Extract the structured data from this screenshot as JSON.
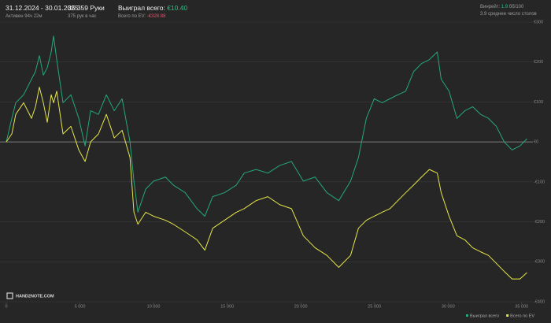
{
  "header": {
    "date_range": "31.12.2024 - 30.01.2025",
    "active": "Активен 94ч 22м",
    "hands": "35 359 Руки",
    "hands_per_hour": "375 рук в час",
    "won_label": "Выиграл всего:",
    "won_value": "€10.40",
    "ev_label": "Всего по EV:",
    "ev_value": "-€328.88",
    "winrate_label": "Винрейт:",
    "winrate_value": "1.9",
    "winrate_unit": "бб/100",
    "tables": "3.9 среднее число столов",
    "logo": "HAND2NOTE.COM"
  },
  "chart_data": {
    "type": "line",
    "x": [
      0,
      375,
      642,
      1177,
      1712,
      1980,
      2247,
      2515,
      2782,
      3050,
      3210,
      3424,
      3852,
      4387,
      4922,
      5350,
      5725,
      6260,
      6795,
      7330,
      7865,
      8400,
      8667,
      8935,
      9470,
      10005,
      10807,
      11342,
      12145,
      12947,
      13482,
      14017,
      14820,
      15622,
      16157,
      16960,
      17762,
      18565,
      19367,
      20170,
      20972,
      21775,
      22577,
      23380,
      23915,
      24450,
      24985,
      25520,
      26055,
      26590,
      27125,
      27660,
      28195,
      28730,
      29265,
      29532,
      30067,
      30602,
      31137,
      31672,
      32207,
      32742,
      33277,
      33812,
      34347,
      34882,
      35359
    ],
    "series": [
      {
        "name": "Выиграл всего",
        "color": "#25a878",
        "values": [
          0,
          59,
          98,
          118,
          157,
          176,
          216,
          167,
          186,
          225,
          265,
          206,
          98,
          118,
          59,
          -10,
          78,
          69,
          118,
          78,
          108,
          0,
          -98,
          -176,
          -118,
          -98,
          -88,
          -108,
          -127,
          -167,
          -186,
          -137,
          -127,
          -108,
          -78,
          -69,
          -78,
          -59,
          -49,
          -98,
          -88,
          -127,
          -147,
          -98,
          -39,
          59,
          108,
          98,
          108,
          118,
          127,
          176,
          196,
          206,
          225,
          157,
          127,
          59,
          78,
          88,
          69,
          59,
          39,
          0,
          -20,
          -10,
          8
        ]
      },
      {
        "name": "Всего по EV",
        "color": "#e6e64a",
        "values": [
          0,
          20,
          69,
          98,
          59,
          88,
          137,
          98,
          49,
          118,
          98,
          127,
          20,
          39,
          -20,
          -49,
          0,
          20,
          69,
          10,
          29,
          -39,
          -176,
          -206,
          -176,
          -186,
          -196,
          -206,
          -225,
          -245,
          -271,
          -216,
          -196,
          -176,
          -167,
          -147,
          -137,
          -157,
          -167,
          -235,
          -265,
          -284,
          -314,
          -284,
          -216,
          -196,
          -186,
          -176,
          -167,
          -147,
          -127,
          -108,
          -88,
          -69,
          -78,
          -127,
          -186,
          -235,
          -245,
          -265,
          -275,
          -284,
          -304,
          -324,
          -343,
          -343,
          -327
        ]
      }
    ],
    "xlim": [
      0,
      35600
    ],
    "xticks": [
      0,
      {
        "value": 5000,
        "label": "5 000"
      },
      {
        "value": 10000,
        "label": "10 000"
      },
      {
        "value": 15000,
        "label": "15 000"
      },
      {
        "value": 20000,
        "label": "20 000"
      },
      {
        "value": 25000,
        "label": "25 000"
      },
      {
        "value": 30000,
        "label": "30 000"
      },
      {
        "value": 35000,
        "label": "35 000"
      }
    ],
    "ylim": [
      -400,
      300
    ],
    "yticks": [
      {
        "value": 300,
        "label": "€300"
      },
      {
        "value": 200,
        "label": "€200"
      },
      {
        "value": 100,
        "label": "€100"
      },
      {
        "value": 0,
        "label": "€0"
      },
      {
        "value": -100,
        "label": "-€100"
      },
      {
        "value": -200,
        "label": "-€200"
      },
      {
        "value": -300,
        "label": "-€300"
      },
      {
        "value": -400,
        "label": "-€400"
      }
    ],
    "grid": true,
    "legend": "lower right"
  }
}
